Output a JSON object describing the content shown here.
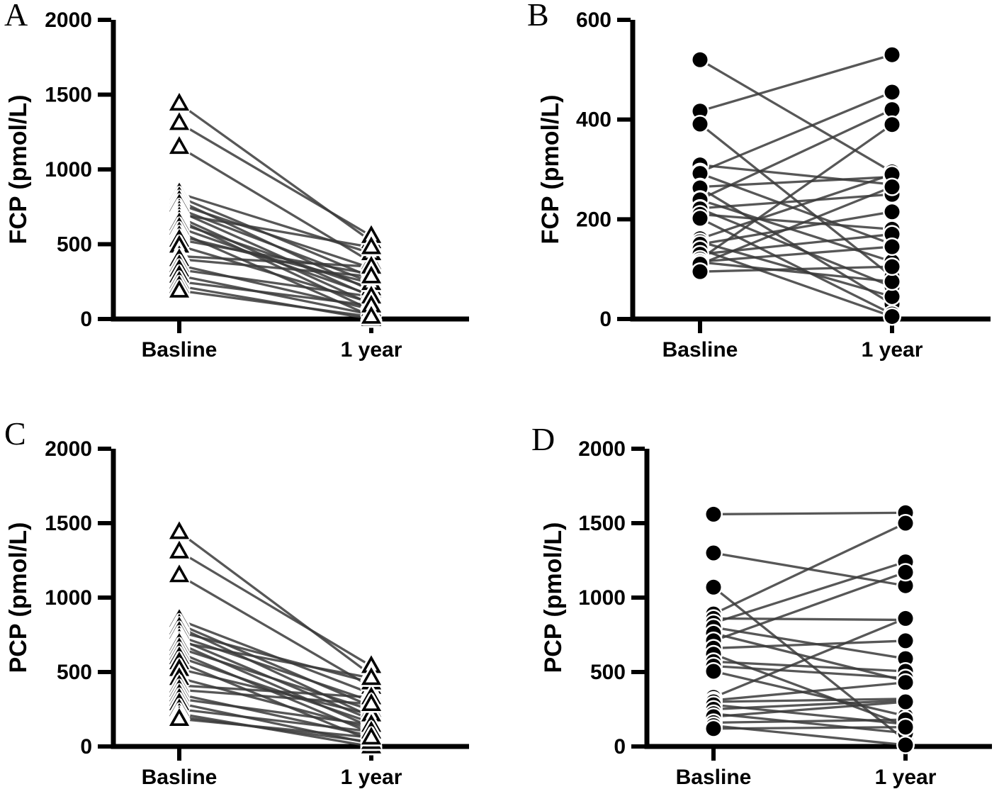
{
  "figure": {
    "background": "#ffffff",
    "axis_color": "#000000",
    "line_color": "#3a3a3a",
    "marker_color": "#000000",
    "text_color": "#000000"
  },
  "chart_data": [
    {
      "type": "line",
      "panel_label": "A",
      "title": "",
      "ylabel": "FCP (pmol/L)",
      "xlabels": [
        "Basline",
        "1 year"
      ],
      "ylim": [
        0,
        2000
      ],
      "yticks": [
        0,
        500,
        1000,
        1500,
        2000
      ],
      "marker": "triangle-open",
      "grid": false,
      "legend": null,
      "pairs": [
        [
          1440,
          520
        ],
        [
          1310,
          555
        ],
        [
          1150,
          380
        ],
        [
          840,
          440
        ],
        [
          815,
          280
        ],
        [
          790,
          190
        ],
        [
          765,
          340
        ],
        [
          735,
          245
        ],
        [
          720,
          150
        ],
        [
          700,
          480
        ],
        [
          680,
          100
        ],
        [
          660,
          60
        ],
        [
          640,
          205
        ],
        [
          610,
          160
        ],
        [
          580,
          20
        ],
        [
          555,
          240
        ],
        [
          530,
          300
        ],
        [
          490,
          110
        ],
        [
          420,
          350
        ],
        [
          400,
          285
        ],
        [
          360,
          65
        ],
        [
          330,
          150
        ],
        [
          290,
          30
        ],
        [
          250,
          90
        ],
        [
          220,
          0
        ],
        [
          190,
          15
        ]
      ]
    },
    {
      "type": "line",
      "panel_label": "B",
      "title": "",
      "ylabel": "FCP (pmol/L)",
      "xlabels": [
        "Basline",
        "1 year"
      ],
      "ylim": [
        0,
        600
      ],
      "yticks": [
        0,
        200,
        400,
        600
      ],
      "marker": "circle-filled",
      "grid": false,
      "legend": null,
      "pairs": [
        [
          520,
          295
        ],
        [
          417,
          530
        ],
        [
          391,
          85
        ],
        [
          309,
          270
        ],
        [
          295,
          455
        ],
        [
          292,
          150
        ],
        [
          265,
          285
        ],
        [
          263,
          30
        ],
        [
          240,
          420
        ],
        [
          239,
          115
        ],
        [
          222,
          250
        ],
        [
          221,
          65
        ],
        [
          210,
          180
        ],
        [
          202,
          10
        ],
        [
          161,
          290
        ],
        [
          155,
          45
        ],
        [
          150,
          215
        ],
        [
          140,
          5
        ],
        [
          130,
          170
        ],
        [
          120,
          390
        ],
        [
          115,
          145
        ],
        [
          114,
          75
        ],
        [
          110,
          265
        ],
        [
          95,
          105
        ]
      ]
    },
    {
      "type": "line",
      "panel_label": "C",
      "title": "",
      "ylabel": "PCP (pmol/L)",
      "xlabels": [
        "Basline",
        "1 year"
      ],
      "ylim": [
        0,
        2000
      ],
      "yticks": [
        0,
        500,
        1000,
        1500,
        2000
      ],
      "marker": "triangle-open",
      "grid": false,
      "legend": null,
      "pairs": [
        [
          1440,
          480
        ],
        [
          1310,
          540
        ],
        [
          1150,
          400
        ],
        [
          850,
          355
        ],
        [
          820,
          270
        ],
        [
          800,
          200
        ],
        [
          770,
          430
        ],
        [
          740,
          305
        ],
        [
          720,
          180
        ],
        [
          700,
          460
        ],
        [
          690,
          130
        ],
        [
          660,
          245
        ],
        [
          630,
          90
        ],
        [
          600,
          160
        ],
        [
          565,
          40
        ],
        [
          520,
          215
        ],
        [
          460,
          120
        ],
        [
          410,
          330
        ],
        [
          380,
          285
        ],
        [
          350,
          70
        ],
        [
          320,
          145
        ],
        [
          290,
          20
        ],
        [
          250,
          100
        ],
        [
          220,
          0
        ],
        [
          200,
          30
        ],
        [
          185,
          60
        ]
      ]
    },
    {
      "type": "line",
      "panel_label": "D",
      "title": "",
      "ylabel": "PCP (pmol/L)",
      "xlabels": [
        "Basline",
        "1 year"
      ],
      "ylim": [
        0,
        2000
      ],
      "yticks": [
        0,
        500,
        1000,
        1500,
        2000
      ],
      "marker": "circle-filled",
      "grid": false,
      "legend": null,
      "pairs": [
        [
          1560,
          1570
        ],
        [
          1300,
          1080
        ],
        [
          1070,
          40
        ],
        [
          890,
          1500
        ],
        [
          860,
          850
        ],
        [
          830,
          1240
        ],
        [
          800,
          590
        ],
        [
          760,
          440
        ],
        [
          710,
          1170
        ],
        [
          660,
          710
        ],
        [
          620,
          140
        ],
        [
          570,
          505
        ],
        [
          540,
          460
        ],
        [
          505,
          205
        ],
        [
          330,
          860
        ],
        [
          310,
          430
        ],
        [
          300,
          320
        ],
        [
          280,
          150
        ],
        [
          250,
          310
        ],
        [
          220,
          90
        ],
        [
          200,
          300
        ],
        [
          160,
          180
        ],
        [
          140,
          10
        ],
        [
          120,
          130
        ]
      ]
    }
  ]
}
